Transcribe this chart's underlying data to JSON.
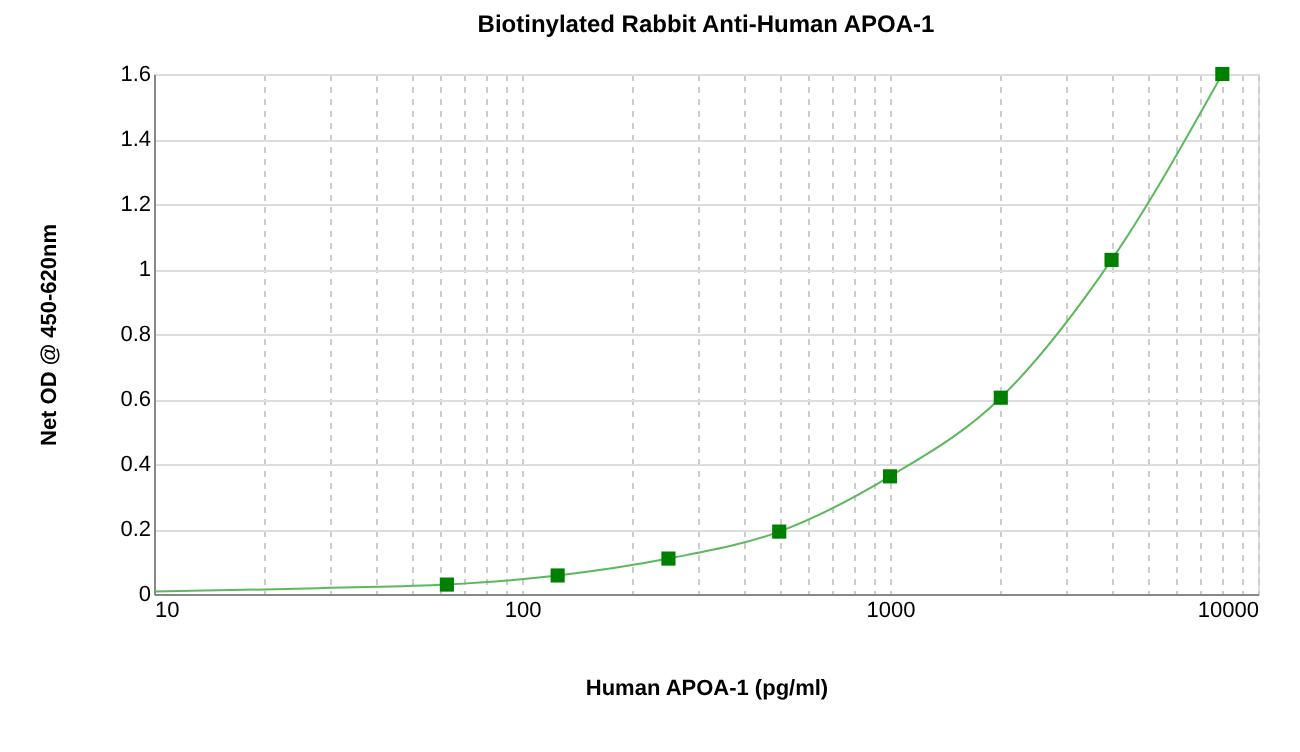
{
  "chart_data": {
    "type": "scatter",
    "title": "Biotinylated Rabbit Anti-Human APOA-1",
    "xlabel": "Human APOA-1 (pg/ml)",
    "ylabel": "Net OD @ 450-620nm",
    "log": "x",
    "grid": true,
    "marker": "square",
    "xlim": [
      10,
      10000
    ],
    "ylim": [
      0,
      1.6
    ],
    "xticks": [
      10,
      {
        "value": 20,
        "label": null
      },
      {
        "value": 30,
        "label": null
      },
      {
        "value": 40,
        "label": null
      },
      {
        "value": 50,
        "label": null
      },
      {
        "value": 60,
        "label": null
      },
      {
        "value": 70,
        "label": null
      },
      {
        "value": 80,
        "label": null
      },
      {
        "value": 90,
        "label": null
      },
      100,
      {
        "value": 200,
        "label": null
      },
      {
        "value": 300,
        "label": null
      },
      {
        "value": 400,
        "label": null
      },
      {
        "value": 500,
        "label": null
      },
      {
        "value": 600,
        "label": null
      },
      {
        "value": 700,
        "label": null
      },
      {
        "value": 800,
        "label": null
      },
      {
        "value": 900,
        "label": null
      },
      1000,
      {
        "value": 2000,
        "label": null
      },
      {
        "value": 3000,
        "label": null
      },
      {
        "value": 4000,
        "label": null
      },
      {
        "value": 5000,
        "label": null
      },
      {
        "value": 6000,
        "label": null
      },
      {
        "value": 7000,
        "label": null
      },
      {
        "value": 8000,
        "label": null
      },
      {
        "value": 9000,
        "label": null
      },
      10000
    ],
    "yticks": [
      0,
      0.2,
      0.4,
      0.6,
      0.8,
      1,
      1.2,
      1.4,
      1.6
    ],
    "series": [
      {
        "type": "line",
        "marker": "none",
        "color": "#5cb85c",
        "x": [
          10,
          20,
          30,
          62.5,
          125,
          250,
          500,
          1000,
          2000,
          4000,
          8000
        ],
        "values": [
          0.008,
          0.014,
          0.019,
          0.029,
          0.057,
          0.109,
          0.192,
          0.362,
          0.604,
          1.028,
          1.6
        ]
      },
      {
        "color": "#008000",
        "x": [
          62.5,
          125,
          250,
          500,
          1000,
          2000,
          4000,
          8000
        ],
        "values": [
          0.029,
          0.057,
          0.109,
          0.192,
          0.362,
          0.604,
          1.028,
          1.6
        ]
      }
    ]
  }
}
